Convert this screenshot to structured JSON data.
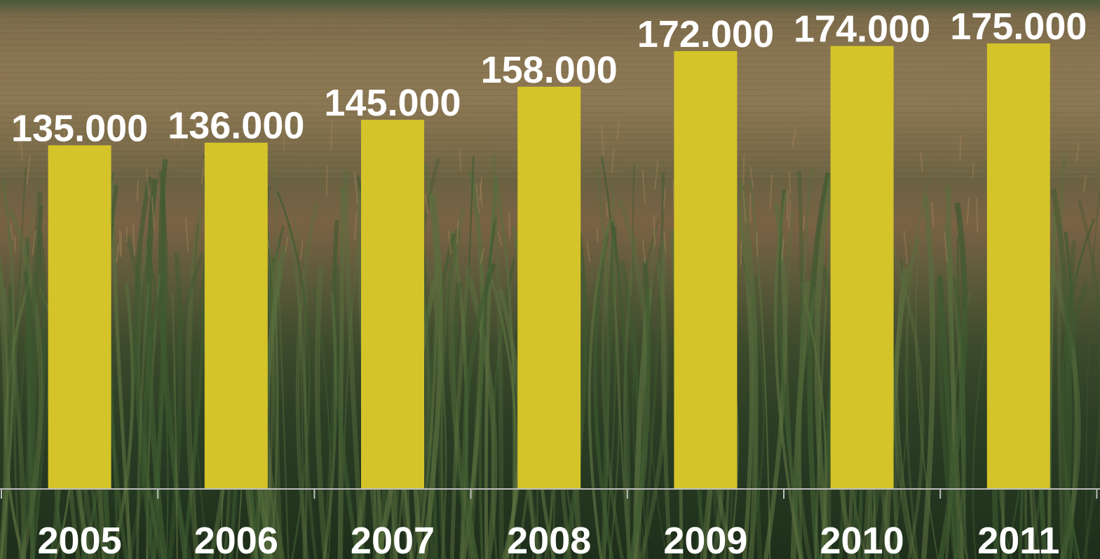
{
  "colors": {
    "bar": "#d4c42a",
    "label": "#ffffff",
    "axis": "#bdbdbd"
  },
  "background": "cornfield-photo",
  "chart_data": {
    "type": "bar",
    "categories": [
      "2005",
      "2006",
      "2007",
      "2008",
      "2009",
      "2010",
      "2011"
    ],
    "values": [
      135000,
      136000,
      145000,
      158000,
      172000,
      174000,
      175000
    ],
    "data_labels": [
      "135.000",
      "136.000",
      "145.000",
      "158.000",
      "172.000",
      "174.000",
      "175.000"
    ],
    "title": "",
    "xlabel": "",
    "ylabel": "",
    "ylim": [
      0,
      175000
    ],
    "grid": false,
    "legend": "none"
  }
}
